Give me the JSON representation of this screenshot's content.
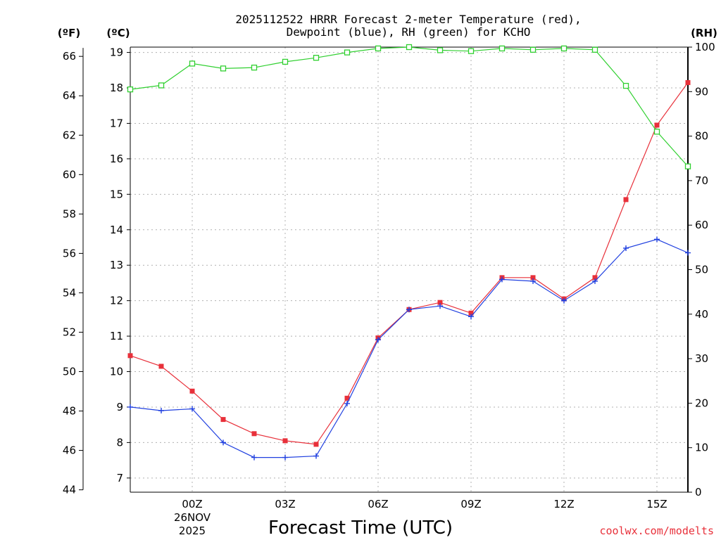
{
  "chart_data": {
    "type": "line",
    "title_line1": "2025112522 HRRR Forecast 2-meter Temperature (red),",
    "title_line2": "Dewpoint (blue), RH (green) for KCHO",
    "units": {
      "fahrenheit": "(ºF)",
      "celsius": "(ºC)",
      "rh": "(RH)"
    },
    "xlabel": "Forecast Time (UTC)",
    "x_ticks": [
      {
        "hour": 2,
        "label": "00Z",
        "sub1": "26NOV",
        "sub2": "2025"
      },
      {
        "hour": 5,
        "label": "03Z"
      },
      {
        "hour": 8,
        "label": "06Z"
      },
      {
        "hour": 11,
        "label": "09Z"
      },
      {
        "hour": 14,
        "label": "12Z"
      },
      {
        "hour": 17,
        "label": "15Z"
      }
    ],
    "xlim": [
      0,
      18
    ],
    "celsius_ylim": [
      6.6,
      19.15
    ],
    "celsius_ticks": [
      7,
      8,
      9,
      10,
      11,
      12,
      13,
      14,
      15,
      16,
      17,
      18,
      19
    ],
    "fahrenheit_ticks": [
      44,
      46,
      48,
      50,
      52,
      54,
      56,
      58,
      60,
      62,
      64,
      66
    ],
    "rh_ylim": [
      0,
      100
    ],
    "rh_ticks": [
      0,
      10,
      20,
      30,
      40,
      50,
      60,
      70,
      80,
      90,
      100
    ],
    "series": [
      {
        "name": "Temperature",
        "unit": "C",
        "color": "#e8303a",
        "marker": "filled-square",
        "values": [
          10.45,
          10.15,
          9.45,
          8.65,
          8.25,
          8.05,
          7.95,
          9.25,
          10.95,
          11.75,
          11.95,
          11.65,
          12.65,
          12.65,
          12.05,
          12.65,
          14.85,
          16.95,
          18.15
        ]
      },
      {
        "name": "Dewpoint",
        "unit": "C",
        "color": "#2040e0",
        "marker": "plus",
        "values": [
          9.0,
          8.9,
          8.95,
          8.0,
          7.58,
          7.58,
          7.62,
          9.1,
          10.9,
          11.75,
          11.85,
          11.55,
          12.6,
          12.55,
          12.0,
          12.55,
          13.48,
          13.73,
          13.35
        ]
      },
      {
        "name": "RH",
        "unit": "%",
        "color": "#30d030",
        "marker": "open-square",
        "values": [
          90.5,
          91.4,
          96.3,
          95.2,
          95.4,
          96.7,
          97.6,
          98.8,
          99.7,
          100.0,
          99.3,
          99.1,
          99.7,
          99.4,
          99.7,
          99.4,
          91.3,
          81.0,
          73.2
        ]
      }
    ],
    "credit": "coolwx.com/modelts"
  }
}
